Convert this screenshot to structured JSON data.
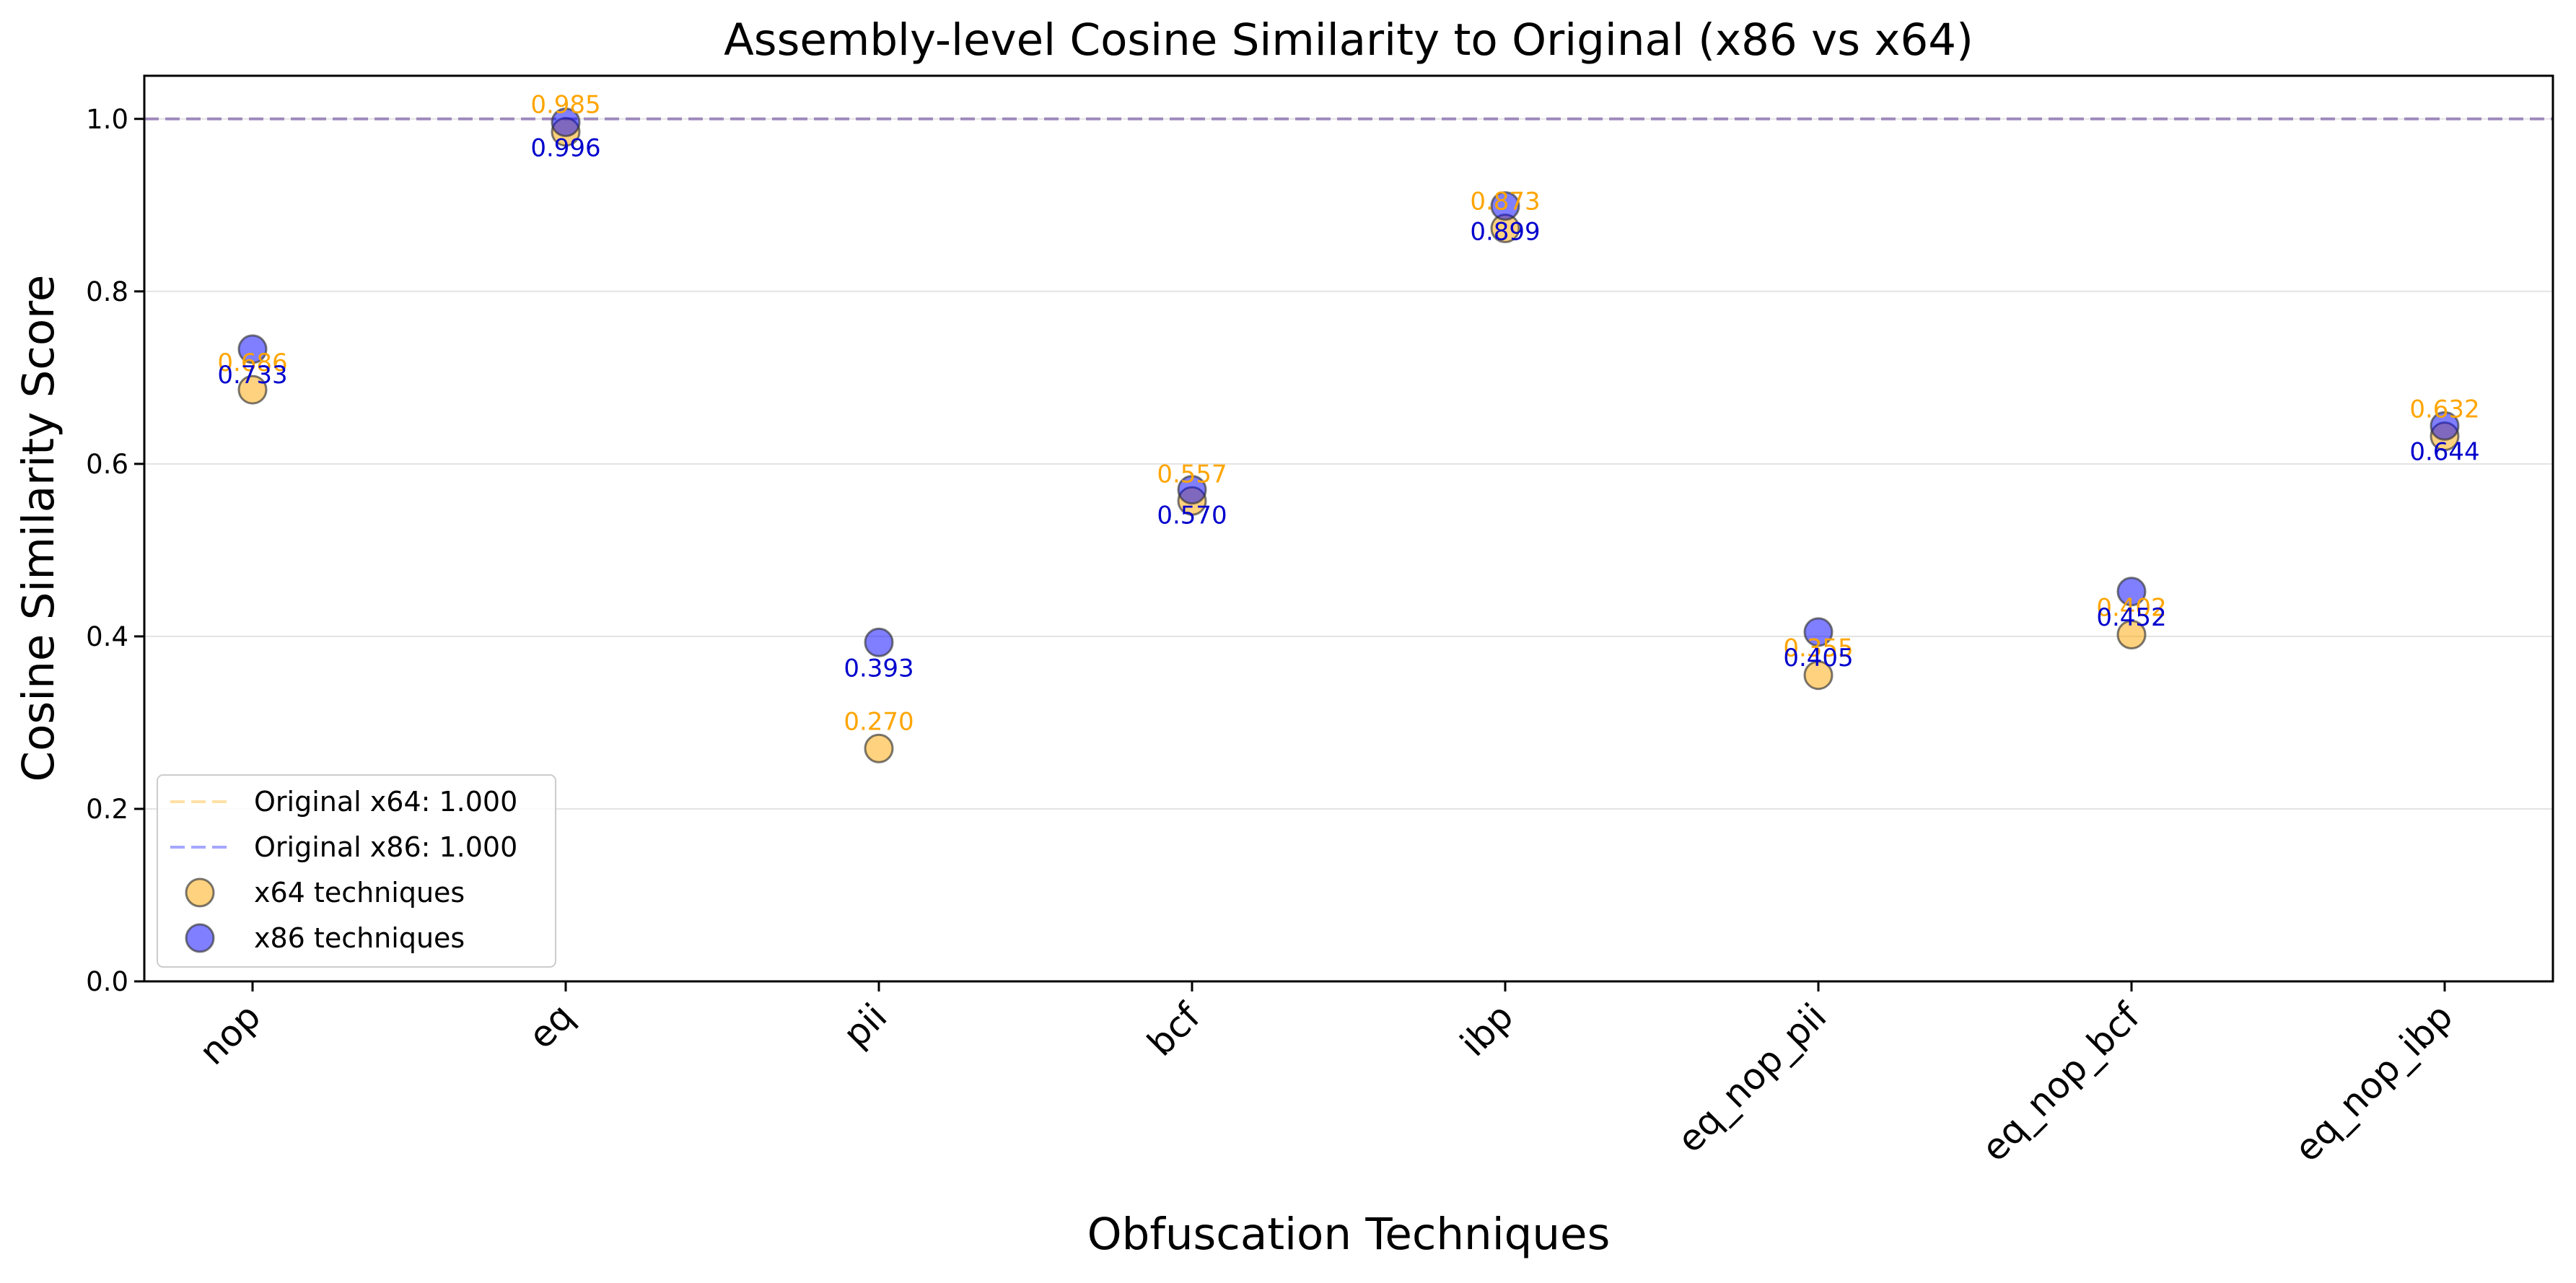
{
  "chart_data": {
    "type": "scatter",
    "title": "Assembly-level Cosine Similarity to Original (x86 vs x64)",
    "xlabel": "Obfuscation Techniques",
    "ylabel": "Cosine Similarity Score",
    "ylim": [
      0.0,
      1.05
    ],
    "yticks": [
      "0.0",
      "0.2",
      "0.4",
      "0.6",
      "0.8",
      "1.0"
    ],
    "grid": "y",
    "legend_position": "lower-left",
    "categories": [
      "nop",
      "eq",
      "pii",
      "bcf",
      "ibp",
      "eq_nop_pii",
      "eq_nop_bcf",
      "eq_nop_ibp"
    ],
    "series": [
      {
        "name": "x64 techniques",
        "color": "#ffa500",
        "values": [
          0.686,
          0.985,
          0.27,
          0.557,
          0.873,
          0.355,
          0.402,
          0.632
        ],
        "labels": [
          "0.686",
          "0.985",
          "0.270",
          "0.557",
          "0.873",
          "0.355",
          "0.402",
          "0.632"
        ]
      },
      {
        "name": "x86 techniques",
        "color": "#0000ff",
        "values": [
          0.733,
          0.996,
          0.393,
          0.57,
          0.899,
          0.405,
          0.452,
          0.644
        ],
        "labels": [
          "0.733",
          "0.996",
          "0.393",
          "0.570",
          "0.899",
          "0.405",
          "0.452",
          "0.644"
        ]
      }
    ],
    "reference_lines": [
      {
        "name": "Original x64: 1.000",
        "value": 1.0,
        "color": "#ffa500"
      },
      {
        "name": "Original x86: 1.000",
        "value": 1.0,
        "color": "#0000ff"
      }
    ]
  }
}
